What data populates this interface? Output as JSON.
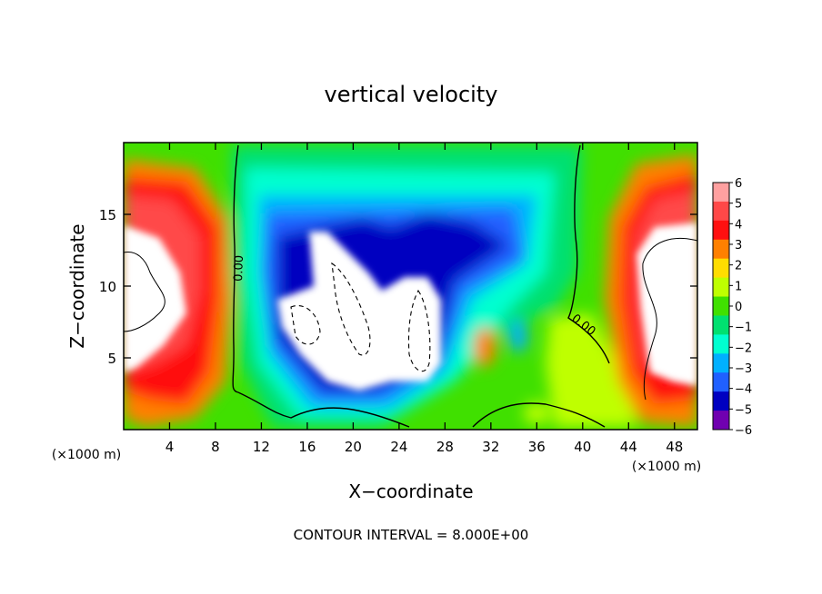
{
  "chart_data": {
    "type": "heatmap",
    "title": "vertical velocity",
    "xlabel": "X−coordinate",
    "ylabel": "Z−coordinate",
    "x_unit": "(×1000 m)",
    "x_unit_right": "(×1000 m)",
    "footer": "CONTOUR INTERVAL = 8.000E+00",
    "xlim": [
      0,
      50
    ],
    "ylim": [
      0,
      20
    ],
    "x_ticks": [
      {
        "value": 4,
        "label": "4"
      },
      {
        "value": 8,
        "label": "8"
      },
      {
        "value": 12,
        "label": "12"
      },
      {
        "value": 16,
        "label": "16"
      },
      {
        "value": 20,
        "label": "20"
      },
      {
        "value": 24,
        "label": "24"
      },
      {
        "value": 28,
        "label": "28"
      },
      {
        "value": 32,
        "label": "32"
      },
      {
        "value": 36,
        "label": "36"
      },
      {
        "value": 40,
        "label": "40"
      },
      {
        "value": 44,
        "label": "44"
      },
      {
        "value": 48,
        "label": "48"
      }
    ],
    "y_ticks": [
      {
        "value": 5,
        "label": "5"
      },
      {
        "value": 10,
        "label": "10"
      },
      {
        "value": 15,
        "label": "15"
      }
    ],
    "colorbar": {
      "levels": [
        6,
        5,
        4,
        3,
        2,
        1,
        0,
        -1,
        -2,
        -3,
        -4,
        -5,
        -6
      ],
      "labels": [
        "6",
        "5",
        "4",
        "3",
        "2",
        "1",
        "0",
        "−1",
        "−2",
        "−3",
        "−4",
        "−5",
        "−6"
      ],
      "colors": [
        "#ffa0a0",
        "#ff4848",
        "#ff1010",
        "#ff8000",
        "#ffdd00",
        "#bfff00",
        "#40e000",
        "#00e070",
        "#00ffd0",
        "#00b0ff",
        "#2060ff",
        "#0000c0",
        "#7000b0"
      ]
    },
    "contour_labels": [
      "0.00",
      "0.00"
    ],
    "features": [
      {
        "kind": "updraft_core",
        "x_range": [
          0,
          8
        ],
        "z_range": [
          3,
          16
        ]
      },
      {
        "kind": "downdraft_core",
        "x_range": [
          13,
          28
        ],
        "z_range": [
          2.5,
          14
        ]
      },
      {
        "kind": "updraft_core",
        "x_range": [
          43,
          50
        ],
        "z_range": [
          2,
          16
        ]
      }
    ]
  }
}
